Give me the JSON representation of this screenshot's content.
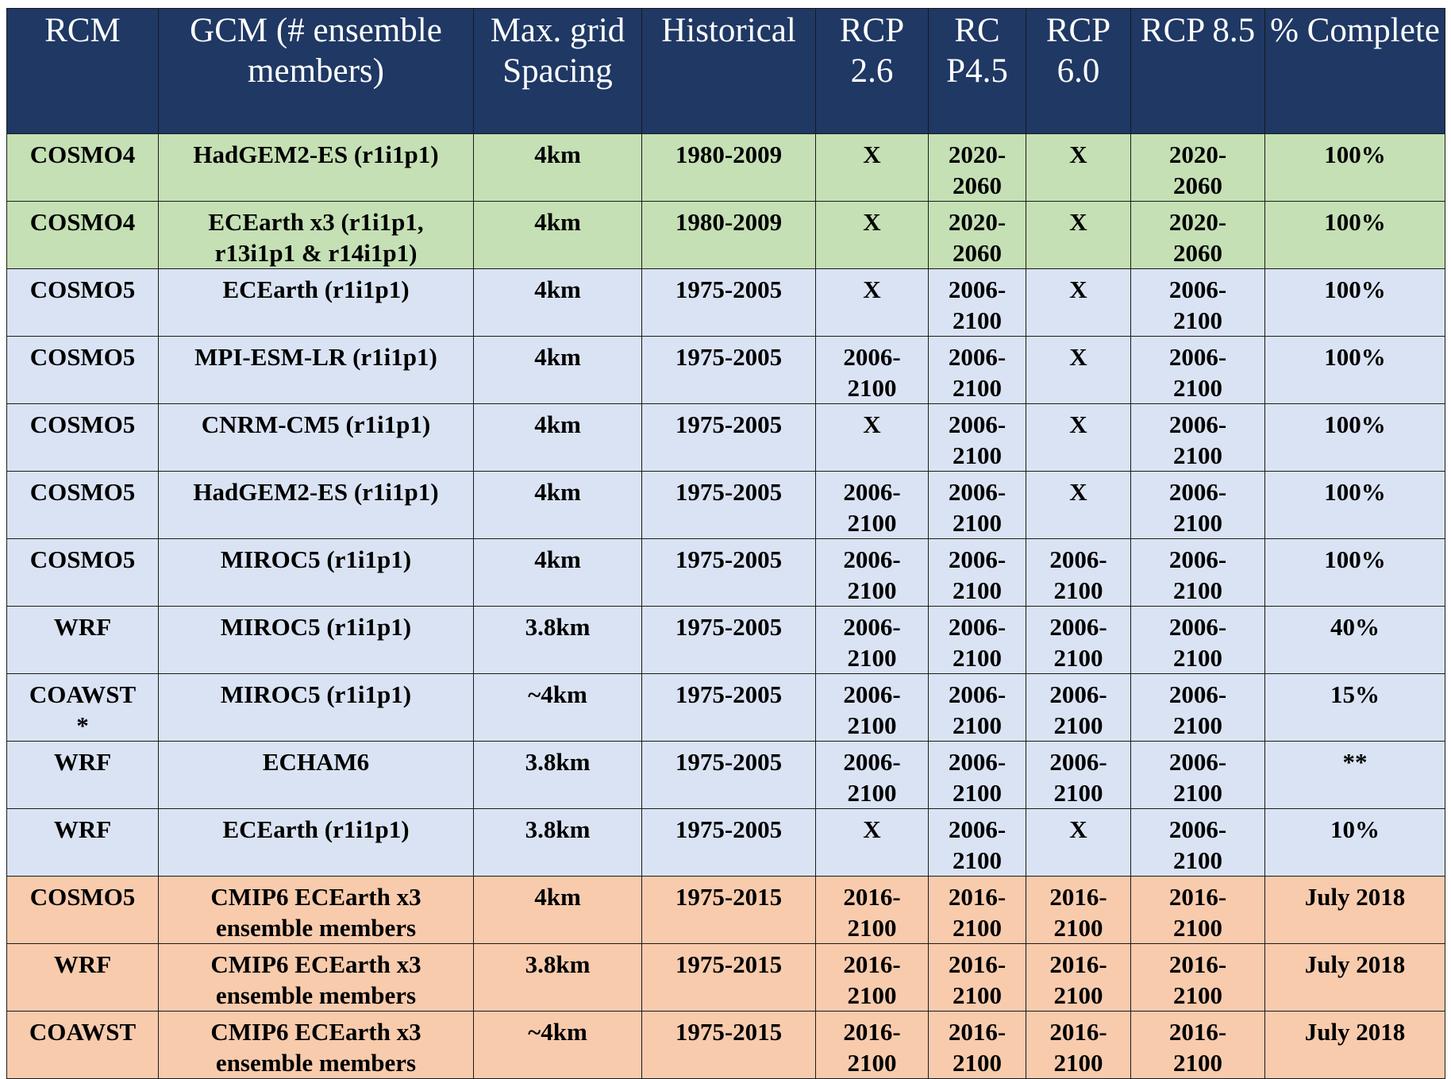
{
  "table": {
    "headers": [
      "RCM",
      "GCM (# ensemble members)",
      "Max. grid Spacing",
      "Historical",
      "RCP 2.6",
      "RC P4.5",
      "RCP 6.0",
      "RCP 8.5",
      "% Complete"
    ],
    "rows": [
      {
        "group": "green",
        "cells": [
          "COSMO4",
          "HadGEM2-ES (r1i1p1)",
          "4km",
          "1980-2009",
          "X",
          "2020-\n2060",
          "X",
          "2020-\n2060",
          "100%"
        ]
      },
      {
        "group": "green",
        "cells": [
          "COSMO4",
          "ECEarth x3 (r1i1p1,\nr13i1p1 & r14i1p1)",
          "4km",
          "1980-2009",
          "X",
          "2020-\n2060",
          "X",
          "2020-\n2060",
          "100%"
        ]
      },
      {
        "group": "blue",
        "cells": [
          "COSMO5",
          "ECEarth (r1i1p1)",
          "4km",
          "1975-2005",
          "X",
          "2006-\n2100",
          "X",
          "2006-\n2100",
          "100%"
        ]
      },
      {
        "group": "blue",
        "cells": [
          "COSMO5",
          "MPI-ESM-LR (r1i1p1)",
          "4km",
          "1975-2005",
          "2006-\n2100",
          "2006-\n2100",
          "X",
          "2006-\n2100",
          "100%"
        ]
      },
      {
        "group": "blue",
        "cells": [
          "COSMO5",
          "CNRM-CM5 (r1i1p1)",
          "4km",
          "1975-2005",
          "X",
          "2006-\n2100",
          "X",
          "2006-\n2100",
          "100%"
        ]
      },
      {
        "group": "blue",
        "cells": [
          "COSMO5",
          "HadGEM2-ES (r1i1p1)",
          "4km",
          "1975-2005",
          "2006-\n2100",
          "2006-\n2100",
          "X",
          "2006-\n2100",
          "100%"
        ]
      },
      {
        "group": "blue",
        "cells": [
          "COSMO5",
          "MIROC5 (r1i1p1)",
          "4km",
          "1975-2005",
          "2006-\n2100",
          "2006-\n2100",
          "2006-\n2100",
          "2006-\n2100",
          "100%"
        ]
      },
      {
        "group": "blue",
        "cells": [
          "WRF",
          "MIROC5 (r1i1p1)",
          "3.8km",
          "1975-2005",
          "2006-\n2100",
          "2006-\n2100",
          "2006-\n2100",
          "2006-\n2100",
          "40%"
        ]
      },
      {
        "group": "blue",
        "cells": [
          "COAWST\n*",
          "MIROC5 (r1i1p1)",
          "~4km",
          "1975-2005",
          "2006-\n2100",
          "2006-\n2100",
          "2006-\n2100",
          "2006-\n2100",
          "15%"
        ]
      },
      {
        "group": "blue",
        "cells": [
          "WRF",
          "ECHAM6",
          "3.8km",
          "1975-2005",
          "2006-\n2100",
          "2006-\n2100",
          "2006-\n2100",
          "2006-\n2100",
          "**"
        ]
      },
      {
        "group": "blue",
        "cells": [
          "WRF",
          "ECEarth (r1i1p1)",
          "3.8km",
          "1975-2005",
          "X",
          "2006-\n2100",
          "X",
          "2006-\n2100",
          "10%"
        ]
      },
      {
        "group": "orange",
        "cells": [
          "COSMO5",
          "CMIP6 ECEarth x3\nensemble members",
          "4km",
          "1975-2015",
          "2016-\n2100",
          "2016-\n2100",
          "2016-\n2100",
          "2016-\n2100",
          "July 2018"
        ]
      },
      {
        "group": "orange",
        "cells": [
          "WRF",
          "CMIP6 ECEarth x3\nensemble members",
          "3.8km",
          "1975-2015",
          "2016-\n2100",
          "2016-\n2100",
          "2016-\n2100",
          "2016-\n2100",
          "July 2018"
        ]
      },
      {
        "group": "orange",
        "cells": [
          "COAWST",
          "CMIP6 ECEarth x3\nensemble members",
          "~4km",
          "1975-2015",
          "2016-\n2100",
          "2016-\n2100",
          "2016-\n2100",
          "2016-\n2100",
          "July 2018"
        ]
      }
    ],
    "colors": {
      "header_bg": "#1f3864",
      "header_text": "#ffffff",
      "green_row": "#c5e0b4",
      "blue_row": "#dae3f3",
      "orange_row": "#f8cbad"
    }
  }
}
